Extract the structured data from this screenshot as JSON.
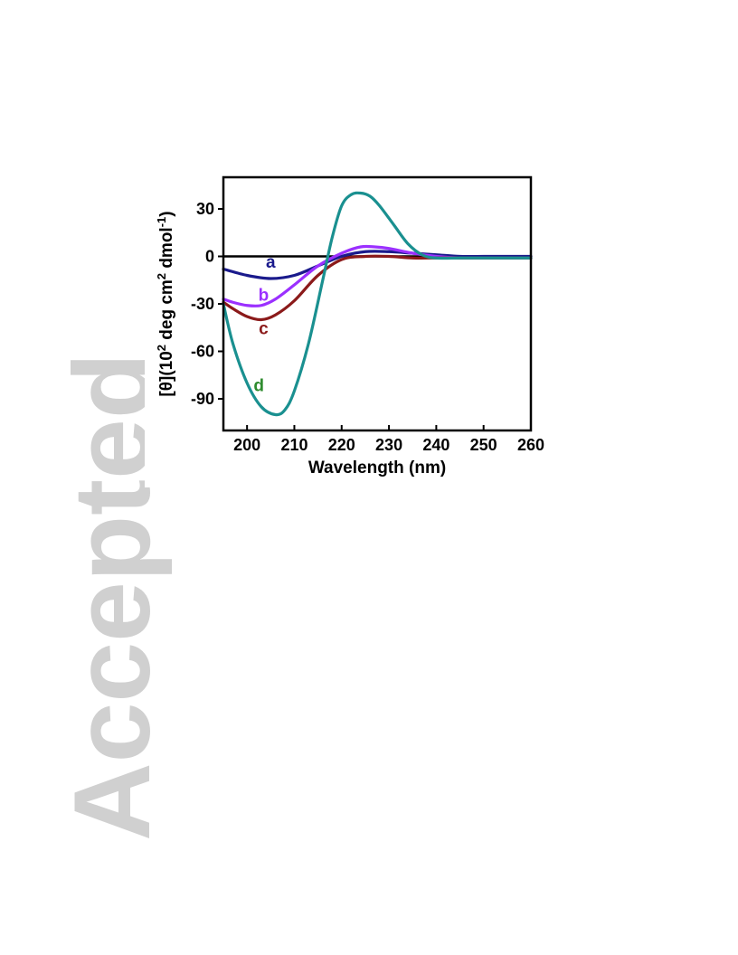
{
  "watermark": {
    "text": "Accepted",
    "color": "#d0d0d0"
  },
  "chart_data": {
    "type": "line",
    "title": "",
    "xlabel": "Wavelength (nm)",
    "ylabel_parts": [
      "[θ](10",
      "2",
      " deg cm",
      "2",
      " dmol",
      "-1",
      ")"
    ],
    "xlim": [
      195,
      260
    ],
    "ylim": [
      -110,
      50
    ],
    "xticks": [
      200,
      210,
      220,
      230,
      240,
      250,
      260
    ],
    "yticks": [
      30,
      0,
      -30,
      -60,
      -90
    ],
    "xtick_labels": [
      "200",
      "210",
      "220",
      "230",
      "240",
      "250",
      "260"
    ],
    "ytick_labels": [
      "30",
      "0",
      "-30",
      "-60",
      "-90"
    ],
    "zero_line": true,
    "grid": false,
    "legend": "inline curve labels",
    "series": [
      {
        "name": "a",
        "color": "#1a1a8c",
        "label_at": [
          205,
          -7
        ],
        "x": [
          195,
          200,
          205,
          210,
          215,
          220,
          225,
          230,
          235,
          240,
          245,
          250,
          255,
          260
        ],
        "y": [
          -8,
          -12,
          -14,
          -12,
          -6,
          0,
          3,
          3,
          2,
          1,
          0,
          0,
          0,
          0
        ]
      },
      {
        "name": "b",
        "color": "#9b30ff",
        "label_at": [
          203.5,
          -28
        ],
        "x": [
          195,
          197,
          200,
          203,
          206,
          210,
          215,
          220,
          224,
          227,
          230,
          235,
          240,
          245,
          250,
          255,
          260
        ],
        "y": [
          -27,
          -29,
          -31,
          -31,
          -27,
          -18,
          -6,
          2,
          6,
          6,
          5,
          2,
          0,
          -1,
          -1,
          -1,
          -1
        ]
      },
      {
        "name": "c",
        "color": "#8b1a1a",
        "label_at": [
          203.5,
          -49
        ],
        "x": [
          195,
          197,
          200,
          203,
          206,
          210,
          215,
          220,
          225,
          230,
          235,
          240,
          245,
          250,
          255,
          260
        ],
        "y": [
          -29,
          -33,
          -38,
          -40,
          -37,
          -28,
          -12,
          -2,
          0,
          0,
          -1,
          -1,
          -1,
          -1,
          -1,
          -1
        ]
      },
      {
        "name": "d",
        "color": "#1a9090",
        "label_at": [
          202.5,
          -85
        ],
        "x": [
          195,
          197,
          200,
          203,
          206,
          208,
          210,
          213,
          216,
          218,
          220,
          222,
          224,
          226,
          228,
          231,
          234,
          237,
          240,
          245,
          250,
          255,
          260
        ],
        "y": [
          -30,
          -55,
          -80,
          -95,
          -100,
          -97,
          -85,
          -55,
          -15,
          12,
          32,
          39,
          40,
          38,
          32,
          20,
          8,
          1,
          -1,
          -1,
          -1,
          -1,
          -1
        ]
      }
    ],
    "label_color_d": "#2e8b2e"
  }
}
